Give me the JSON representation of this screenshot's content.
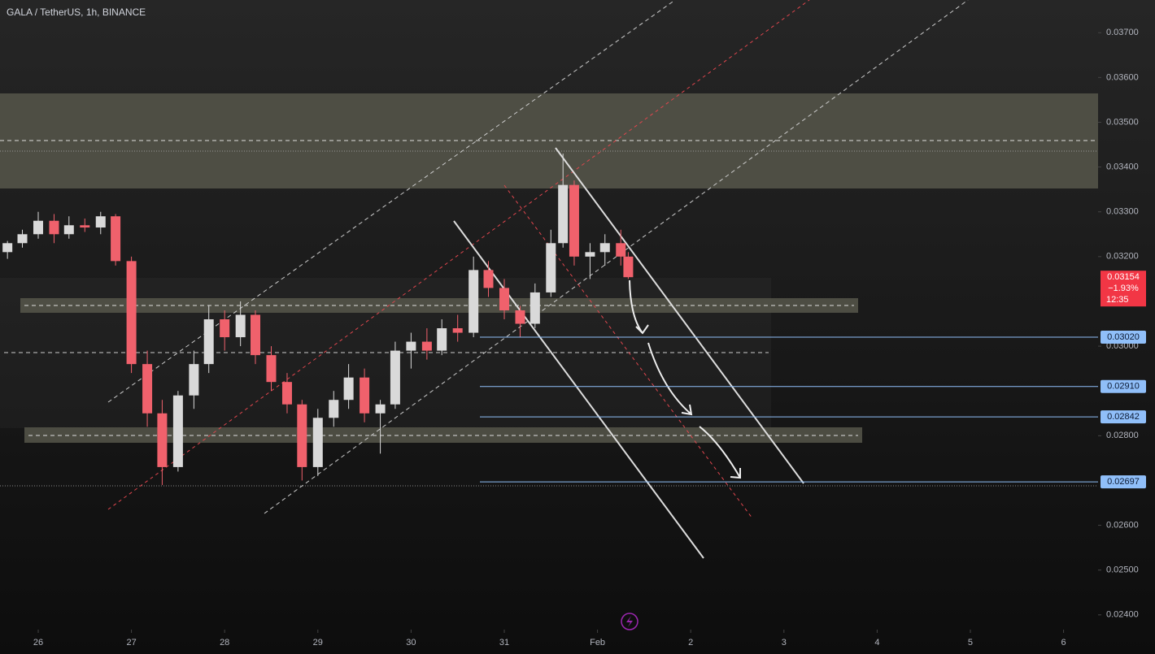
{
  "chart_data": {
    "type": "candlestick",
    "title": "GALA / TetherUS, 1h, BINANCE",
    "x": [
      25.67,
      25.83,
      26.0,
      26.17,
      26.33,
      26.5,
      26.67,
      26.83,
      27.0,
      27.17,
      27.33,
      27.5,
      27.67,
      27.83,
      28.0,
      28.17,
      28.33,
      28.5,
      28.67,
      28.83,
      29.0,
      29.17,
      29.33,
      29.5,
      29.67,
      29.83,
      30.0,
      30.17,
      30.33,
      30.5,
      30.67,
      30.83,
      31.0,
      31.17,
      31.33,
      31.5,
      31.63,
      31.75,
      31.92,
      32.08,
      32.25,
      32.33
    ],
    "open": [
      0.0321,
      0.0323,
      0.0325,
      0.0328,
      0.0325,
      0.0327,
      0.03265,
      0.0329,
      0.0319,
      0.0296,
      0.0285,
      0.0273,
      0.0289,
      0.0296,
      0.0306,
      0.0302,
      0.0307,
      0.0298,
      0.0292,
      0.0287,
      0.0273,
      0.0284,
      0.0288,
      0.0293,
      0.0285,
      0.0287,
      0.0299,
      0.0301,
      0.0299,
      0.0304,
      0.0303,
      0.0317,
      0.0313,
      0.0308,
      0.0305,
      0.0312,
      0.0323,
      0.0336,
      0.032,
      0.0321,
      0.0323,
      0.032
    ],
    "high": [
      0.03235,
      0.0326,
      0.033,
      0.03295,
      0.0329,
      0.03285,
      0.033,
      0.03295,
      0.032,
      0.0299,
      0.0288,
      0.029,
      0.0299,
      0.0309,
      0.0308,
      0.031,
      0.0308,
      0.03,
      0.0294,
      0.0288,
      0.0286,
      0.029,
      0.0296,
      0.0295,
      0.0288,
      0.0301,
      0.0303,
      0.0304,
      0.0306,
      0.0307,
      0.032,
      0.0319,
      0.0315,
      0.0309,
      0.0314,
      0.0326,
      0.0343,
      0.0337,
      0.0323,
      0.0325,
      0.0326,
      0.0321
    ],
    "low": [
      0.03195,
      0.0322,
      0.0324,
      0.0323,
      0.0324,
      0.03255,
      0.0325,
      0.0318,
      0.0294,
      0.0282,
      0.0269,
      0.0272,
      0.0286,
      0.0294,
      0.0299,
      0.03,
      0.0296,
      0.029,
      0.0285,
      0.027,
      0.0271,
      0.0282,
      0.0286,
      0.0283,
      0.0276,
      0.0286,
      0.0295,
      0.0297,
      0.0298,
      0.0301,
      0.0302,
      0.0311,
      0.0306,
      0.0302,
      0.0304,
      0.0311,
      0.0322,
      0.0318,
      0.0315,
      0.0318,
      0.0318,
      0.0315
    ],
    "close": [
      0.0323,
      0.0325,
      0.0328,
      0.0325,
      0.0327,
      0.03265,
      0.0329,
      0.0319,
      0.0296,
      0.0285,
      0.0273,
      0.0289,
      0.0296,
      0.0306,
      0.0302,
      0.0307,
      0.0298,
      0.0292,
      0.0287,
      0.0273,
      0.0284,
      0.0288,
      0.0293,
      0.0285,
      0.0287,
      0.0299,
      0.0301,
      0.0299,
      0.0304,
      0.0303,
      0.0317,
      0.0313,
      0.0308,
      0.0305,
      0.0312,
      0.0323,
      0.0336,
      0.032,
      0.0321,
      0.0323,
      0.032,
      0.03154
    ],
    "up_color": "#d9d9d9",
    "down_color": "#f0616c",
    "xlim": [
      25.59,
      37.37
    ],
    "ylim": [
      0.03773,
      0.02367
    ],
    "xticks": [
      26,
      27,
      28,
      29,
      30,
      31,
      {
        "value": 32,
        "label": "Feb"
      },
      {
        "value": 33,
        "label": "2"
      },
      {
        "value": 34,
        "label": "3"
      },
      {
        "value": 35,
        "label": "4"
      },
      {
        "value": 36,
        "label": "5"
      },
      {
        "value": 37,
        "label": "6"
      }
    ],
    "yticks": [
      {
        "value": 0.037,
        "label": "0.03700"
      },
      {
        "value": 0.036,
        "label": "0.03600"
      },
      {
        "value": 0.035,
        "label": "0.03500"
      },
      {
        "value": 0.034,
        "label": "0.03400"
      },
      {
        "value": 0.033,
        "label": "0.03300"
      },
      {
        "value": 0.032,
        "label": "0.03200"
      },
      {
        "value": 0.03,
        "label": "0.03000"
      },
      {
        "value": 0.028,
        "label": "0.02800"
      },
      {
        "value": 0.026,
        "label": "0.02600"
      },
      {
        "value": 0.025,
        "label": "0.02500"
      },
      {
        "value": 0.024,
        "label": "0.02400"
      }
    ],
    "levels": {
      "values": [
        0.0302,
        0.0291,
        0.02842,
        0.02697
      ],
      "value_labels": [
        "0.03020",
        "0.02910",
        "0.02842",
        "0.02697"
      ],
      "color": "#90bff9"
    },
    "last_price": 0.03154,
    "last_change": "−1.93%",
    "countdown": "12:35",
    "last_color": "#f23645"
  }
}
